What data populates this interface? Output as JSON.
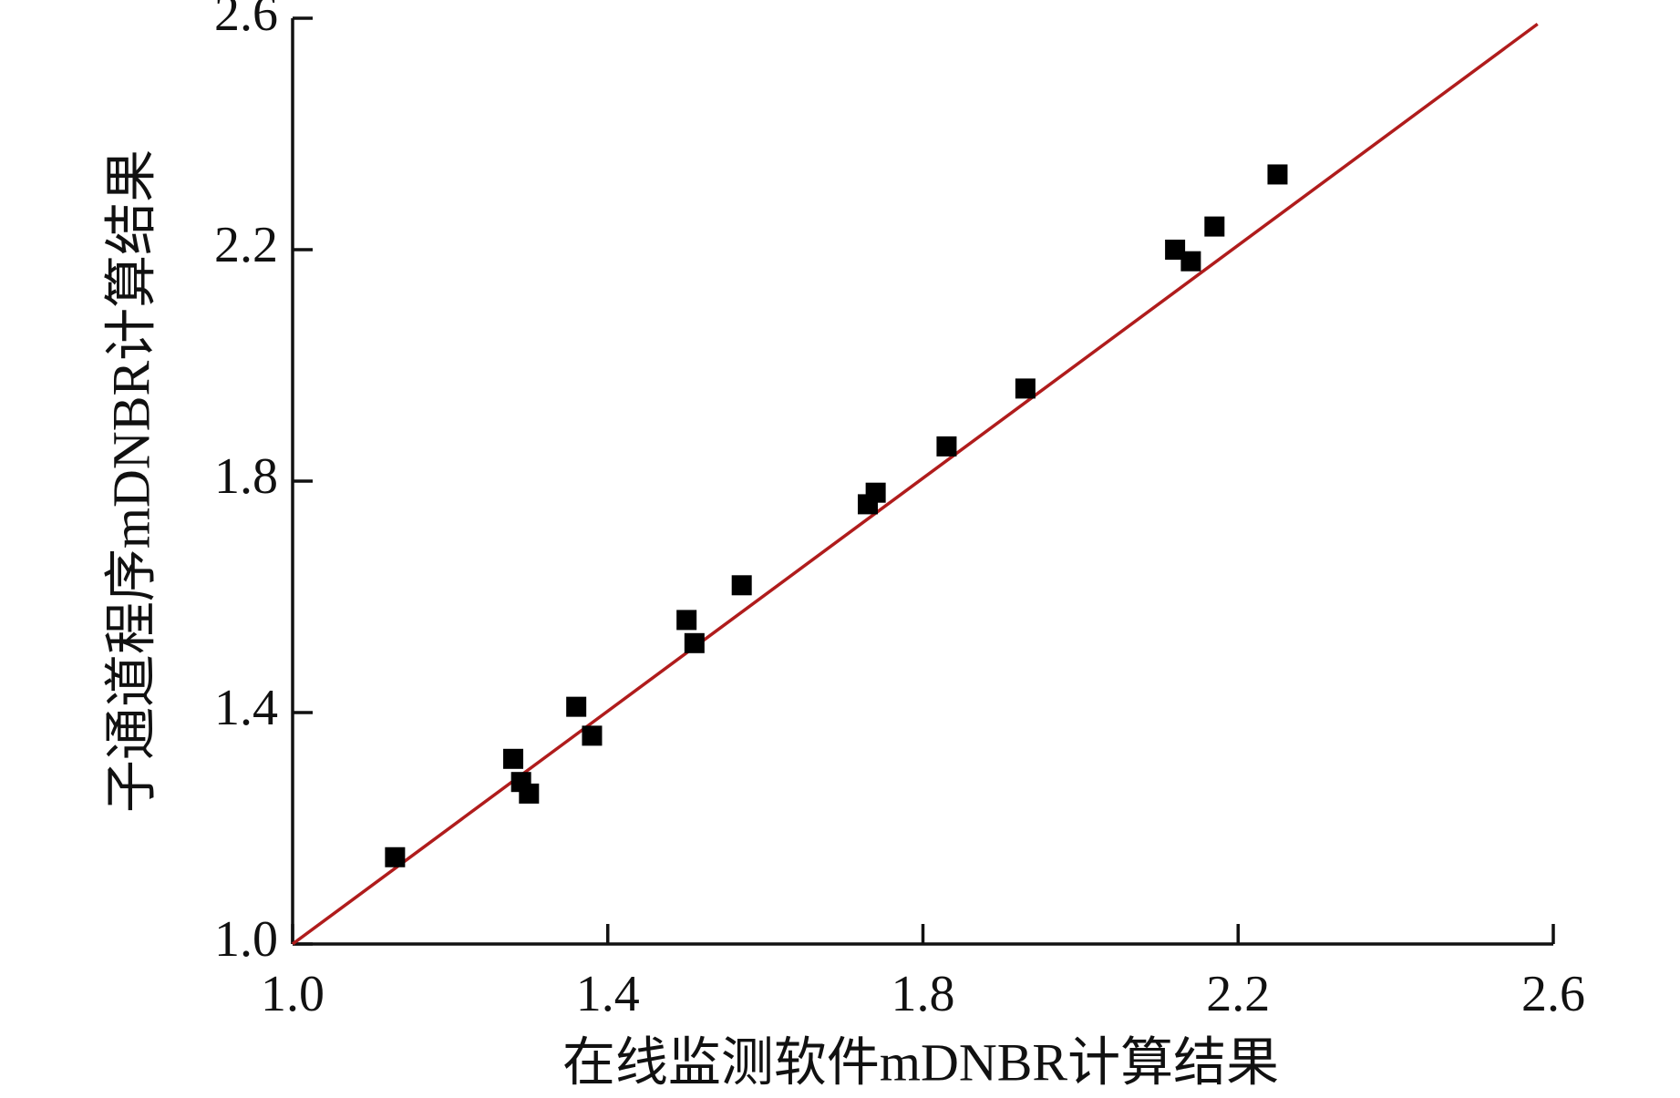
{
  "chart_data": {
    "type": "scatter",
    "x_label": "在线监测软件mDNBR计算结果",
    "y_label": "子通道程序mDNBR计算结果",
    "series": [
      {
        "color": "#000000",
        "x": [
          1.13,
          1.28,
          1.29,
          1.3,
          1.36,
          1.38,
          1.5,
          1.51,
          1.57,
          1.73,
          1.74,
          1.83,
          1.93,
          2.12,
          2.14,
          2.17,
          2.25
        ],
        "values": [
          1.15,
          1.32,
          1.28,
          1.26,
          1.41,
          1.36,
          1.56,
          1.52,
          1.62,
          1.76,
          1.78,
          1.86,
          1.96,
          2.2,
          2.18,
          2.24,
          2.33
        ]
      }
    ],
    "reference_line": {
      "color": "#b01c1c",
      "x": [
        1.0,
        2.58
      ],
      "values": [
        1.0,
        2.59
      ]
    },
    "xlim": [
      1.0,
      2.6
    ],
    "ylim": [
      1.0,
      2.6
    ],
    "xticks": [
      {
        "value": 1.0,
        "label": "1.0"
      },
      1.4,
      1.8,
      2.2,
      2.6
    ],
    "yticks": [
      {
        "value": 1.0,
        "label": "1.0"
      },
      1.4,
      1.8,
      2.2,
      2.6
    ]
  }
}
